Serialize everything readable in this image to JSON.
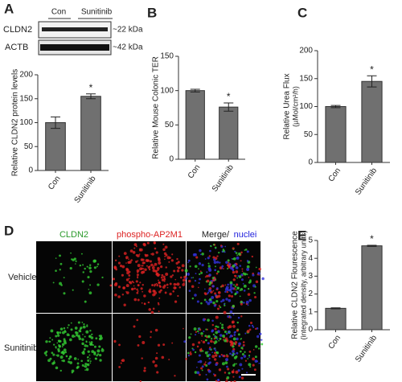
{
  "chart_data": [
    {
      "type": "bar",
      "panel": "A",
      "y_label": "Relative CLDN2 protein levels",
      "categories": [
        "Con",
        "Sunitinib"
      ],
      "values": [
        100,
        155
      ],
      "errors": [
        12,
        5
      ],
      "value_annotations": [
        null,
        "*"
      ],
      "color": "#707070",
      "ylim": [
        0,
        200
      ],
      "yticks": [
        0,
        50,
        100,
        150,
        200
      ]
    },
    {
      "type": "bar",
      "panel": "B",
      "y_label": "Relative Mouse Colonic TER",
      "categories": [
        "Con",
        "Sunitinib"
      ],
      "values": [
        100,
        76
      ],
      "errors": [
        2,
        6
      ],
      "value_annotations": [
        null,
        "*"
      ],
      "color": "#707070",
      "ylim": [
        0,
        150
      ],
      "yticks": [
        0,
        50,
        100,
        150
      ]
    },
    {
      "type": "bar",
      "panel": "C",
      "y_label": "Relative Urea Flux",
      "y_sublabel": "(µMol/cm²/h)",
      "categories": [
        "Con",
        "Sunitinib"
      ],
      "values": [
        100,
        145
      ],
      "errors": [
        2,
        10
      ],
      "value_annotations": [
        null,
        "*"
      ],
      "color": "#707070",
      "ylim": [
        0,
        200
      ],
      "yticks": [
        0,
        50,
        100,
        150,
        200
      ]
    },
    {
      "type": "bar",
      "panel": "E",
      "y_label": "Relative CLDN2 Flourescence",
      "y_sublabel": "(integrated density, arbitrary units)",
      "categories": [
        "Con",
        "Sunitinib"
      ],
      "values": [
        1.2,
        4.7
      ],
      "errors": [
        0.03,
        0.03
      ],
      "value_annotations": [
        null,
        "*"
      ],
      "color": "#707070",
      "ylim": [
        0,
        5
      ],
      "yticks": [
        0,
        1,
        2,
        3,
        4,
        5
      ]
    }
  ],
  "blot": {
    "lanes": [
      "Con",
      "Sunitinib"
    ],
    "bands": [
      {
        "name": "CLDN2",
        "size": "~22 kDa"
      },
      {
        "name": "ACTB",
        "size": "~42 kDa"
      }
    ]
  },
  "imaging": {
    "panel": "D",
    "channels": [
      "CLDN2",
      "phospho-AP2M1"
    ],
    "merge": "Merge/",
    "nuclei": "nuclei",
    "conditions": [
      "Vehicle",
      "Sunitinib"
    ]
  }
}
